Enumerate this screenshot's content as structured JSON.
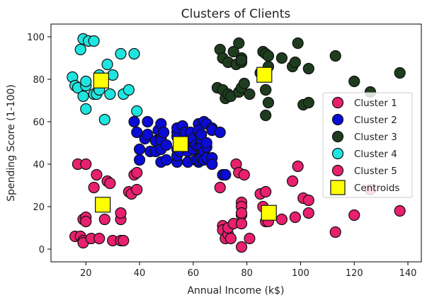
{
  "chart_data": {
    "type": "scatter",
    "title": "Clusters of Clients",
    "xlabel": "Annual Income (k$)",
    "ylabel": "Spending Score (1-100)",
    "xlim": [
      7,
      145
    ],
    "ylim": [
      -6,
      106
    ],
    "xticks": [
      20,
      40,
      60,
      80,
      100,
      120,
      140
    ],
    "yticks": [
      0,
      20,
      40,
      60,
      80,
      100
    ],
    "grid": false,
    "legend_position": "right",
    "series": [
      {
        "name": "Cluster 1",
        "color": "#e8206e",
        "points": [
          [
            16,
            6
          ],
          [
            17,
            40
          ],
          [
            18,
            6
          ],
          [
            19,
            4
          ],
          [
            19,
            3
          ],
          [
            19,
            14
          ],
          [
            20,
            15
          ],
          [
            20,
            13
          ],
          [
            20,
            40
          ],
          [
            22,
            5
          ],
          [
            23,
            29
          ],
          [
            24,
            35
          ],
          [
            25,
            5
          ],
          [
            27,
            14
          ],
          [
            28,
            32
          ],
          [
            29,
            31
          ],
          [
            30,
            4
          ],
          [
            33,
            4
          ],
          [
            33,
            14
          ],
          [
            33,
            17
          ],
          [
            34,
            4
          ],
          [
            36,
            27
          ],
          [
            37,
            26
          ],
          [
            38,
            35
          ],
          [
            39,
            36
          ],
          [
            39,
            28
          ]
        ]
      },
      {
        "name": "Cluster 2",
        "color": "#0b0bd6",
        "points": [
          [
            38,
            60
          ],
          [
            39,
            55
          ],
          [
            40,
            47
          ],
          [
            40,
            42
          ],
          [
            42,
            52
          ],
          [
            43,
            54
          ],
          [
            43,
            60
          ],
          [
            44,
            46
          ],
          [
            46,
            51
          ],
          [
            46,
            46
          ],
          [
            47,
            56
          ],
          [
            48,
            52
          ],
          [
            48,
            59
          ],
          [
            48,
            51
          ],
          [
            48,
            47
          ],
          [
            48,
            41
          ],
          [
            49,
            55
          ],
          [
            50,
            42
          ],
          [
            50,
            49
          ],
          [
            54,
            53
          ],
          [
            54,
            47
          ],
          [
            54,
            55
          ],
          [
            54,
            41
          ],
          [
            54,
            44
          ],
          [
            54,
            57
          ],
          [
            55,
            46
          ],
          [
            56,
            58
          ],
          [
            57,
            55
          ],
          [
            58,
            46
          ],
          [
            58,
            41
          ],
          [
            59,
            55
          ],
          [
            60,
            49
          ],
          [
            60,
            52
          ],
          [
            60,
            47
          ],
          [
            61,
            42
          ],
          [
            61,
            49
          ],
          [
            62,
            41
          ],
          [
            62,
            48
          ],
          [
            62,
            59
          ],
          [
            62,
            55
          ],
          [
            62,
            56
          ],
          [
            62,
            42
          ],
          [
            63,
            50
          ],
          [
            63,
            46
          ],
          [
            63,
            43
          ],
          [
            63,
            48
          ],
          [
            63,
            52
          ],
          [
            63,
            54
          ],
          [
            64,
            42
          ],
          [
            64,
            46
          ],
          [
            64,
            60
          ],
          [
            65,
            48
          ],
          [
            65,
            50
          ],
          [
            65,
            43
          ],
          [
            65,
            59
          ],
          [
            67,
            43
          ],
          [
            67,
            57
          ],
          [
            67,
            56
          ],
          [
            67,
            40
          ],
          [
            70,
            55
          ],
          [
            71,
            35
          ],
          [
            72,
            35
          ]
        ]
      },
      {
        "name": "Cluster 3",
        "color": "#1e3d1e",
        "points": [
          [
            69,
            76
          ],
          [
            70,
            94
          ],
          [
            71,
            90
          ],
          [
            71,
            75
          ],
          [
            72,
            71
          ],
          [
            73,
            88
          ],
          [
            73,
            73
          ],
          [
            74,
            72
          ],
          [
            75,
            93
          ],
          [
            76,
            87
          ],
          [
            77,
            97
          ],
          [
            77,
            74
          ],
          [
            78,
            90
          ],
          [
            78,
            88
          ],
          [
            78,
            76
          ],
          [
            78,
            89
          ],
          [
            79,
            78
          ],
          [
            81,
            73
          ],
          [
            85,
            83
          ],
          [
            86,
            93
          ],
          [
            87,
            75
          ],
          [
            87,
            92
          ],
          [
            87,
            63
          ],
          [
            87,
            75
          ],
          [
            88,
            86
          ],
          [
            88,
            69
          ],
          [
            88,
            91
          ],
          [
            93,
            90
          ],
          [
            97,
            86
          ],
          [
            98,
            88
          ],
          [
            99,
            97
          ],
          [
            101,
            68
          ],
          [
            103,
            85
          ],
          [
            103,
            69
          ],
          [
            113,
            91
          ],
          [
            120,
            79
          ],
          [
            126,
            74
          ],
          [
            137,
            83
          ]
        ]
      },
      {
        "name": "Cluster 4",
        "color": "#1fe5e0",
        "points": [
          [
            15,
            81
          ],
          [
            16,
            77
          ],
          [
            17,
            76
          ],
          [
            18,
            94
          ],
          [
            19,
            99
          ],
          [
            19,
            72
          ],
          [
            20,
            77
          ],
          [
            20,
            79
          ],
          [
            20,
            66
          ],
          [
            21,
            98
          ],
          [
            23,
            73
          ],
          [
            23,
            98
          ],
          [
            24,
            73
          ],
          [
            25,
            82
          ],
          [
            25,
            75
          ],
          [
            27,
            61
          ],
          [
            28,
            87
          ],
          [
            29,
            73
          ],
          [
            30,
            82
          ],
          [
            33,
            92
          ],
          [
            34,
            73
          ],
          [
            36,
            75
          ],
          [
            38,
            92
          ],
          [
            39,
            65
          ]
        ]
      },
      {
        "name": "Cluster 5",
        "color": "#e8206e",
        "points": [
          [
            70,
            29
          ],
          [
            71,
            11
          ],
          [
            71,
            9
          ],
          [
            72,
            5
          ],
          [
            73,
            7
          ],
          [
            73,
            10
          ],
          [
            74,
            5
          ],
          [
            75,
            12
          ],
          [
            76,
            40
          ],
          [
            77,
            36
          ],
          [
            78,
            22
          ],
          [
            78,
            20
          ],
          [
            78,
            16
          ],
          [
            78,
            1
          ],
          [
            78,
            12
          ],
          [
            78,
            17
          ],
          [
            79,
            35
          ],
          [
            81,
            5
          ],
          [
            85,
            26
          ],
          [
            86,
            20
          ],
          [
            87,
            27
          ],
          [
            87,
            13
          ],
          [
            88,
            15
          ],
          [
            88,
            13
          ],
          [
            93,
            14
          ],
          [
            97,
            32
          ],
          [
            98,
            15
          ],
          [
            99,
            39
          ],
          [
            101,
            24
          ],
          [
            103,
            23
          ],
          [
            103,
            17
          ],
          [
            113,
            8
          ],
          [
            120,
            16
          ],
          [
            126,
            28
          ],
          [
            137,
            18
          ]
        ]
      }
    ],
    "centroids": {
      "name": "Centroids",
      "color": "#ffff00",
      "points": [
        [
          26.3,
          20.9
        ],
        [
          55.3,
          49.5
        ],
        [
          86.5,
          82.1
        ],
        [
          25.7,
          79.4
        ],
        [
          88.2,
          17.1
        ]
      ]
    }
  }
}
